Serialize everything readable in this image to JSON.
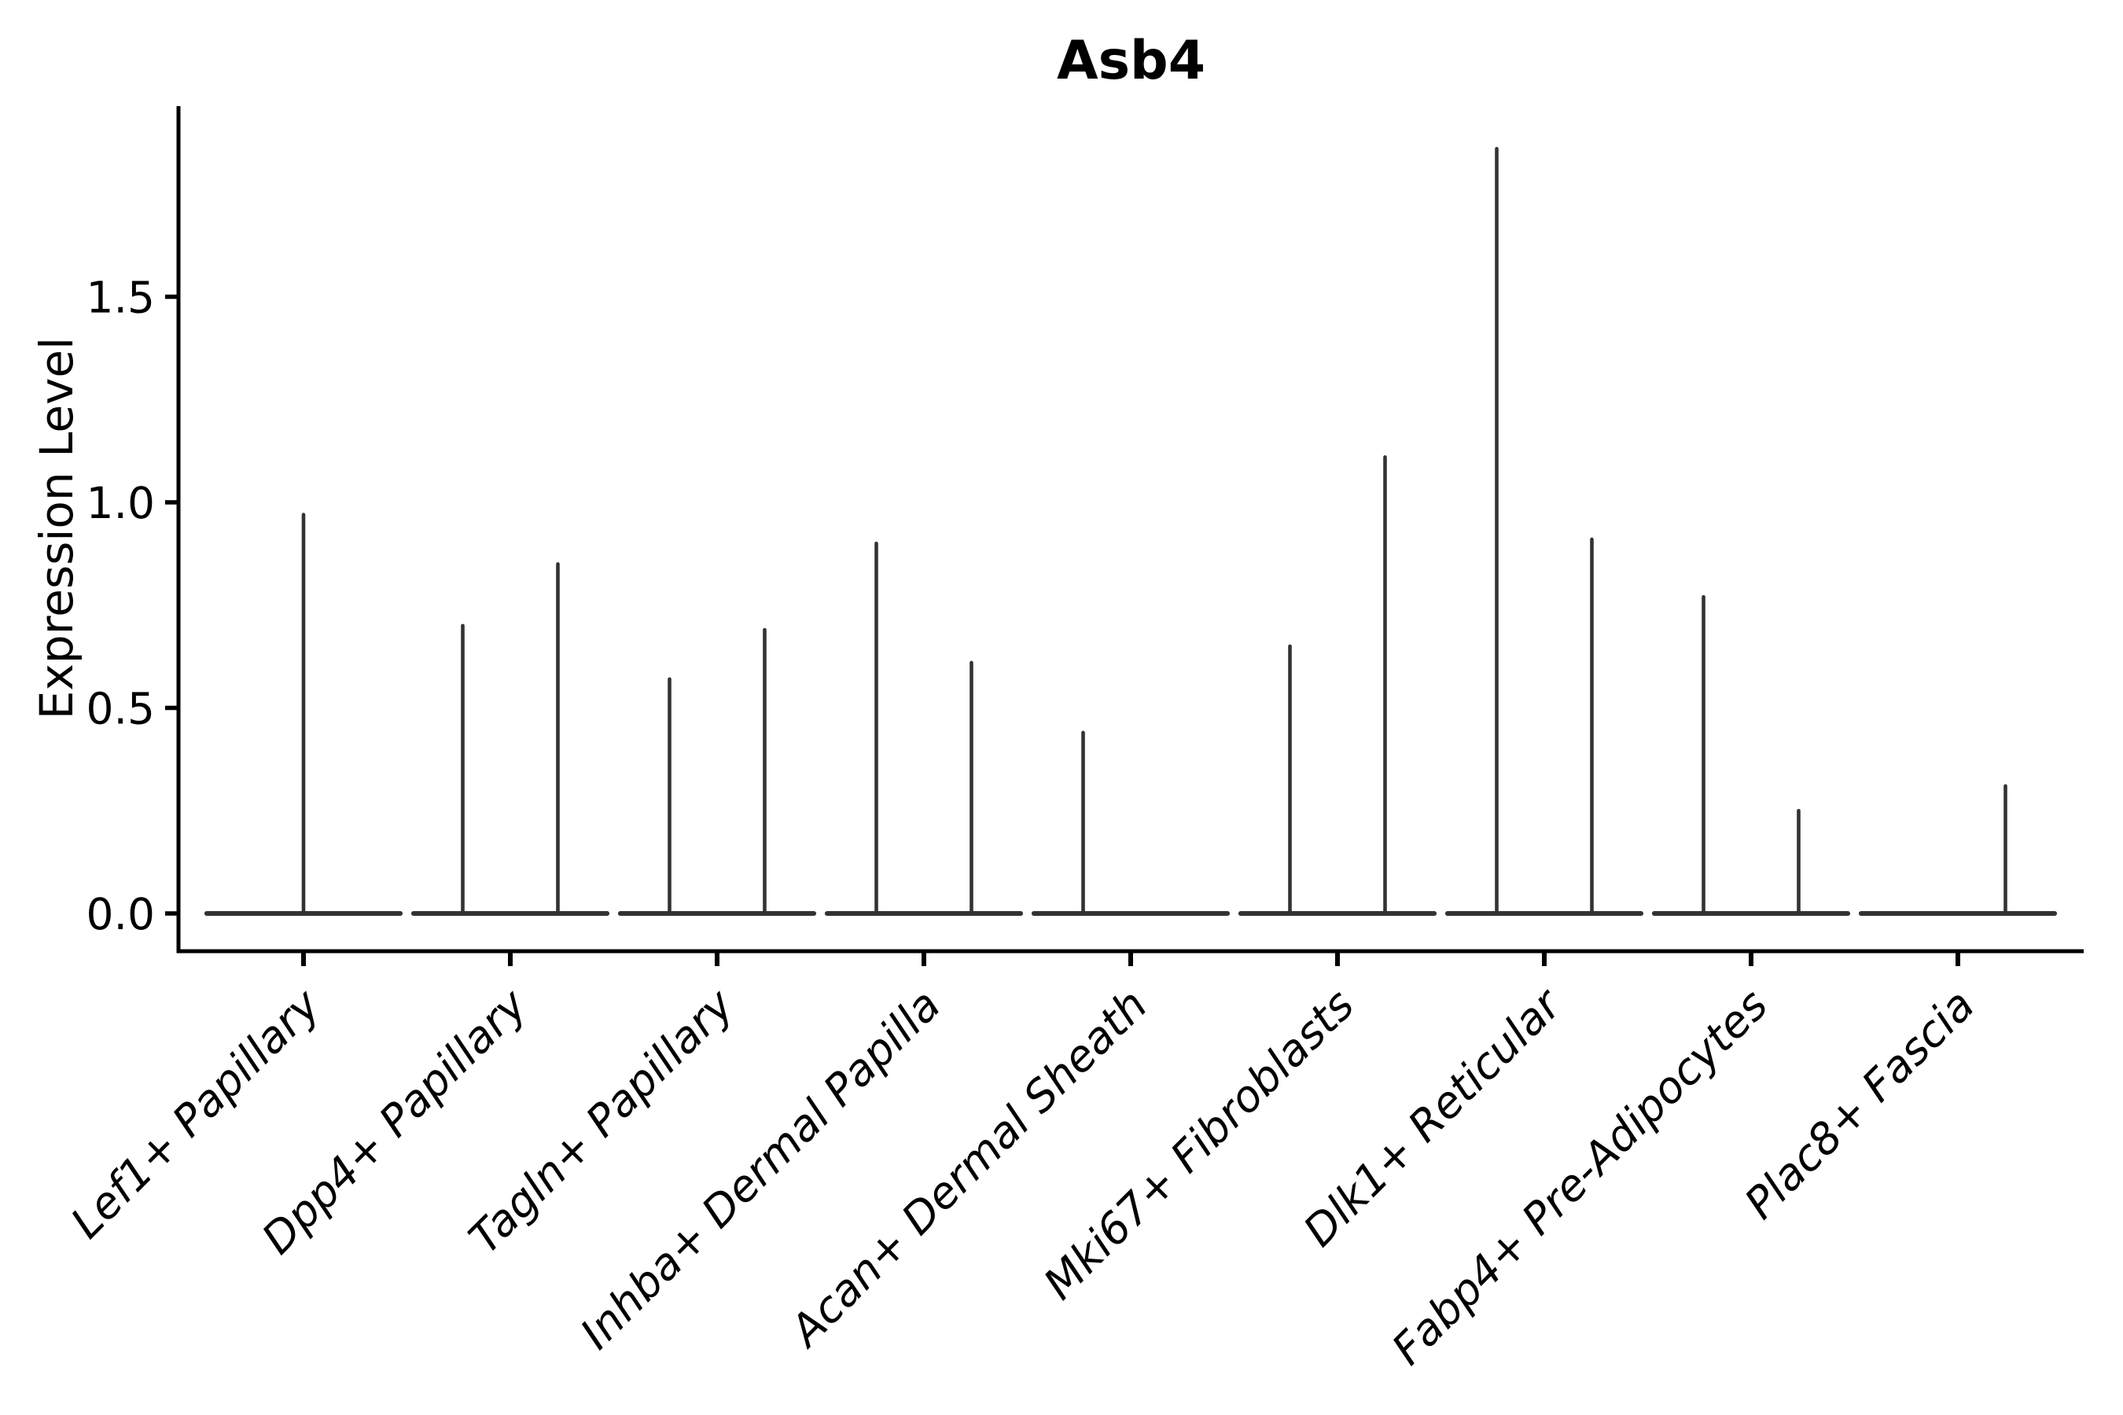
{
  "figure": {
    "title": "Asb4",
    "ylabel": "Expression Level"
  },
  "chart_data": {
    "type": "violin",
    "title": "Asb4",
    "xlabel": "",
    "ylabel": "Expression Level",
    "grid": false,
    "legend": false,
    "ylim": [
      -0.09,
      1.96
    ],
    "yticks": [
      {
        "value": 0.0,
        "label": "0.0"
      },
      {
        "value": 0.5,
        "label": "0.5"
      },
      {
        "value": 1.0,
        "label": "1.0"
      },
      {
        "value": 1.5,
        "label": "1.5"
      }
    ],
    "categories": [
      "Lef1+ Papillary",
      "Dpp4+ Papillary",
      "Tagln+ Papillary",
      "Inhba+ Dermal Papilla",
      "Acan+ Dermal Sheath",
      "Mki67+ Fibroblasts",
      "Dlk1+ Reticular",
      "Fabp4+ Pre-Adipocytes",
      "Plac8+ Fascia"
    ],
    "violins": [
      {
        "category": "Lef1+ Papillary",
        "baseline_value": 0.0,
        "spikes": [
          {
            "pos": 0.0,
            "max": 0.97
          }
        ]
      },
      {
        "category": "Dpp4+ Papillary",
        "baseline_value": 0.0,
        "spikes": [
          {
            "pos": -0.23,
            "max": 0.7
          },
          {
            "pos": 0.23,
            "max": 0.85
          }
        ]
      },
      {
        "category": "Tagln+ Papillary",
        "baseline_value": 0.0,
        "spikes": [
          {
            "pos": -0.23,
            "max": 0.57
          },
          {
            "pos": 0.23,
            "max": 0.69
          }
        ]
      },
      {
        "category": "Inhba+ Dermal Papilla",
        "baseline_value": 0.0,
        "spikes": [
          {
            "pos": -0.23,
            "max": 0.9
          },
          {
            "pos": 0.23,
            "max": 0.61
          }
        ]
      },
      {
        "category": "Acan+ Dermal Sheath",
        "baseline_value": 0.0,
        "spikes": [
          {
            "pos": -0.23,
            "max": 0.44
          }
        ]
      },
      {
        "category": "Mki67+ Fibroblasts",
        "baseline_value": 0.0,
        "spikes": [
          {
            "pos": -0.23,
            "max": 0.65
          },
          {
            "pos": 0.23,
            "max": 1.11
          }
        ]
      },
      {
        "category": "Dlk1+ Reticular",
        "baseline_value": 0.0,
        "spikes": [
          {
            "pos": -0.23,
            "max": 1.86
          },
          {
            "pos": 0.23,
            "max": 0.91
          }
        ]
      },
      {
        "category": "Fabp4+ Pre-Adipocytes",
        "baseline_value": 0.0,
        "spikes": [
          {
            "pos": -0.23,
            "max": 0.77
          },
          {
            "pos": 0.23,
            "max": 0.25
          }
        ]
      },
      {
        "category": "Plac8+ Fascia",
        "baseline_value": 0.0,
        "spikes": [
          {
            "pos": 0.23,
            "max": 0.31
          }
        ]
      }
    ],
    "baseline_halfwidth": 0.468,
    "colors": {
      "violin": "#333333",
      "axis": "#000000",
      "text": "#000000",
      "background": "#ffffff"
    }
  }
}
